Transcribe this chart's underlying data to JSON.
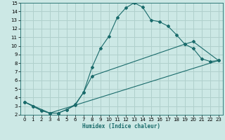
{
  "xlabel": "Humidex (Indice chaleur)",
  "bg_color": "#cce8e5",
  "grid_color": "#b0d0cc",
  "line_color": "#1a6b6b",
  "xlim": [
    -0.5,
    23.5
  ],
  "ylim": [
    2,
    15
  ],
  "xticks": [
    0,
    1,
    2,
    3,
    4,
    5,
    6,
    7,
    8,
    9,
    10,
    11,
    12,
    13,
    14,
    15,
    16,
    17,
    18,
    19,
    20,
    21,
    22,
    23
  ],
  "yticks": [
    2,
    3,
    4,
    5,
    6,
    7,
    8,
    9,
    10,
    11,
    12,
    13,
    14,
    15
  ],
  "line1_x": [
    0,
    1,
    2,
    3,
    4,
    5,
    6,
    7,
    8,
    9,
    10,
    11,
    12,
    13,
    14,
    15,
    16,
    17,
    18,
    19,
    20,
    21,
    22,
    23
  ],
  "line1_y": [
    3.5,
    3.0,
    2.5,
    2.2,
    2.2,
    2.6,
    3.1,
    4.6,
    7.5,
    9.7,
    11.1,
    13.3,
    14.4,
    15.0,
    14.5,
    13.0,
    12.8,
    12.3,
    11.3,
    10.2,
    9.7,
    8.5,
    8.2,
    8.3
  ],
  "line2_x": [
    0,
    1,
    2,
    3,
    4,
    5,
    6,
    7,
    8,
    19,
    20,
    23
  ],
  "line2_y": [
    3.5,
    3.0,
    2.5,
    2.2,
    2.2,
    2.6,
    3.2,
    4.6,
    6.5,
    10.2,
    10.5,
    8.3
  ],
  "line3_x": [
    0,
    3,
    23
  ],
  "line3_y": [
    3.5,
    2.2,
    8.3
  ]
}
